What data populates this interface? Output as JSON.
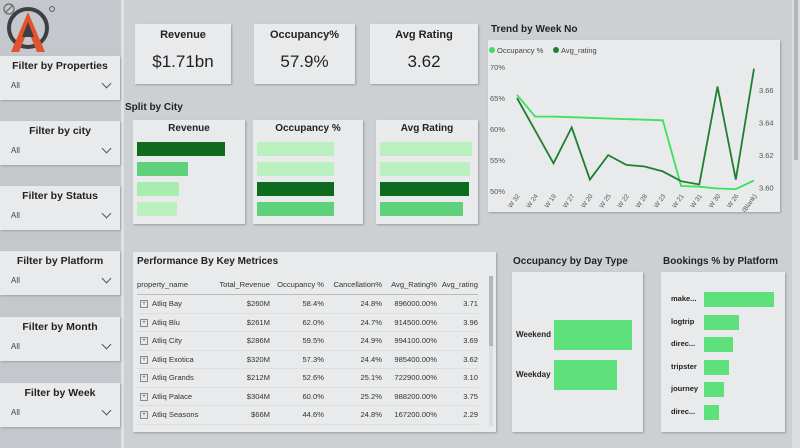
{
  "filters": [
    {
      "title": "Filter by Properties",
      "value": "All"
    },
    {
      "title": "Filter by city",
      "value": "All"
    },
    {
      "title": "Filter by Status",
      "value": "All"
    },
    {
      "title": "Filter by Platform",
      "value": "All"
    },
    {
      "title": "Filter by Month",
      "value": "All"
    },
    {
      "title": "Filter by Week",
      "value": "All"
    }
  ],
  "kpis": [
    {
      "title": "Revenue",
      "value": "$1.71bn"
    },
    {
      "title": "Occupancy%",
      "value": "57.9%"
    },
    {
      "title": "Avg Rating",
      "value": "3.62"
    }
  ],
  "split_by_city": {
    "title": "Split by City",
    "panels": [
      "Revenue",
      "Occupancy %",
      "Avg Rating"
    ]
  },
  "trend": {
    "title": "Trend by Week No"
  },
  "performance": {
    "title": "Performance By Key Metrices",
    "columns": [
      "property_name",
      "Total_Revenue",
      "Occupancy %",
      "Cancellation%",
      "Avg_Rating%",
      "Avg_rating"
    ],
    "rows": [
      [
        "Atliq Bay",
        "$260M",
        "58.4%",
        "24.8%",
        "896000.00%",
        "3.71"
      ],
      [
        "Atliq Blu",
        "$261M",
        "62.0%",
        "24.7%",
        "914500.00%",
        "3.96"
      ],
      [
        "Atliq City",
        "$286M",
        "59.5%",
        "24.9%",
        "994100.00%",
        "3.69"
      ],
      [
        "Atliq Exotica",
        "$320M",
        "57.3%",
        "24.4%",
        "985400.00%",
        "3.62"
      ],
      [
        "Atliq Grands",
        "$212M",
        "52.6%",
        "25.1%",
        "722900.00%",
        "3.10"
      ],
      [
        "Atliq Palace",
        "$304M",
        "60.0%",
        "25.2%",
        "988200.00%",
        "3.75"
      ],
      [
        "Atliq Seasons",
        "$66M",
        "44.6%",
        "24.8%",
        "167200.00%",
        "2.29"
      ]
    ]
  },
  "chart_data": [
    {
      "type": "bar",
      "title": "Revenue",
      "orientation": "horizontal",
      "values": [
        1.0,
        0.58,
        0.48,
        0.45
      ],
      "colors": [
        "#0e6b1d",
        "#5ed17a",
        "#a9ecb0",
        "#b9f0bd"
      ]
    },
    {
      "type": "bar",
      "title": "Occupancy %",
      "orientation": "horizontal",
      "values": [
        0.87,
        0.87,
        0.87,
        0.87
      ],
      "colors": [
        "#b9f0bd",
        "#b9f0bd",
        "#0e6b1d",
        "#5ed17a"
      ]
    },
    {
      "type": "bar",
      "title": "Avg Rating",
      "orientation": "horizontal",
      "values": [
        1.0,
        0.98,
        0.97,
        0.9
      ],
      "colors": [
        "#b9f0bd",
        "#b9f0bd",
        "#0e6b1d",
        "#5ed17a"
      ]
    },
    {
      "type": "line",
      "title": "Trend by Week No",
      "categories": [
        "W 32",
        "W 24",
        "W 19",
        "W 27",
        "W 20",
        "W 25",
        "W 22",
        "W 28",
        "W 23",
        "W 21",
        "W 31",
        "W 30",
        "W 26",
        "(Blank)"
      ],
      "series": [
        {
          "name": "Occupancy %",
          "axis": "left",
          "color": "#3fe05a",
          "values": [
            65.5,
            62.0,
            62.0,
            61.9,
            61.8,
            61.7,
            61.6,
            61.5,
            61.4,
            50.8,
            50.7,
            50.4,
            50.3,
            51.7
          ]
        },
        {
          "name": "Avg_rating",
          "axis": "right",
          "color": "#1f7f2e",
          "values": [
            3.655,
            3.635,
            3.615,
            3.637,
            3.605,
            3.62,
            3.614,
            3.613,
            3.61,
            3.604,
            3.602,
            3.662,
            3.605,
            3.673
          ]
        }
      ],
      "y_left": {
        "ticks": [
          "50%",
          "55%",
          "60%",
          "65%",
          "70%"
        ],
        "lim": [
          50,
          70
        ]
      },
      "y_right": {
        "ticks": [
          "3.60",
          "3.62",
          "3.64",
          "3.66"
        ],
        "lim": [
          3.598,
          3.674
        ]
      },
      "legend": "top-left"
    },
    {
      "type": "bar",
      "title": "Occupancy by Day Type",
      "orientation": "horizontal",
      "categories": [
        "Weekend",
        "Weekday"
      ],
      "values": [
        62.5,
        50.5
      ],
      "color": "#5ee07a"
    },
    {
      "type": "bar",
      "title": "Bookings % by Platform",
      "orientation": "horizontal",
      "categories": [
        "make...",
        "logtrip",
        "direc...",
        "tripster",
        "journey",
        "direc..."
      ],
      "values": [
        100,
        50,
        41,
        35,
        28,
        21
      ],
      "color": "#5ee07a"
    }
  ]
}
